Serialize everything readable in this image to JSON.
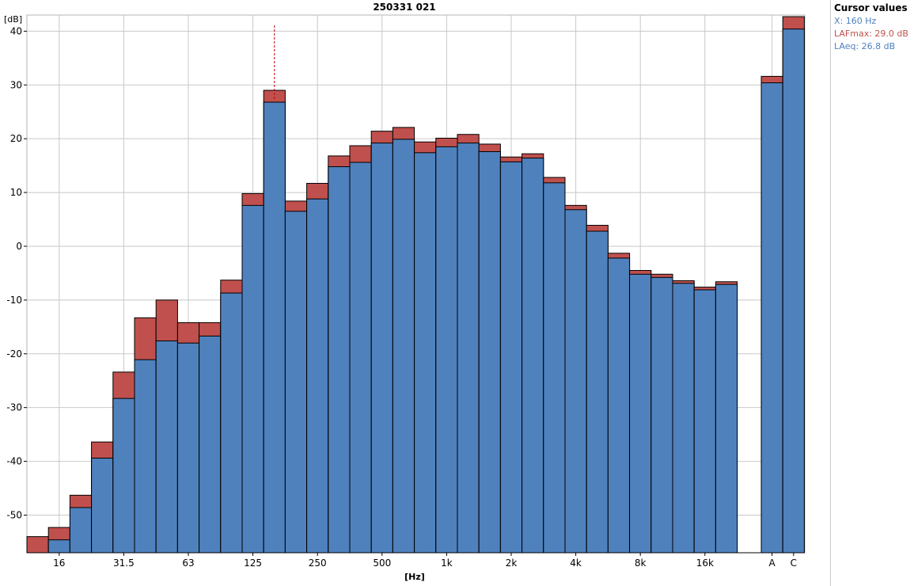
{
  "chart_data": {
    "type": "bar",
    "title": "250331 021",
    "ylabel": "[dB]",
    "xlabel": "[Hz]",
    "ylim": [
      -57,
      43
    ],
    "yticks": [
      40,
      30,
      20,
      10,
      0,
      -10,
      -20,
      -30,
      -40,
      -50
    ],
    "grid": true,
    "categories": [
      "12.5",
      "16",
      "20",
      "25",
      "31.5",
      "40",
      "50",
      "63",
      "80",
      "100",
      "125",
      "160",
      "200",
      "250",
      "315",
      "400",
      "500",
      "630",
      "800",
      "1k",
      "1.25k",
      "1.6k",
      "2k",
      "2.5k",
      "3.15k",
      "4k",
      "5k",
      "6.3k",
      "8k",
      "10k",
      "12.5k",
      "16k",
      "20k"
    ],
    "x_tick_labels": [
      "",
      "16",
      "",
      "",
      "31.5",
      "",
      "",
      "63",
      "",
      "",
      "125",
      "",
      "",
      "250",
      "",
      "",
      "500",
      "",
      "",
      "1k",
      "",
      "",
      "2k",
      "",
      "",
      "4k",
      "",
      "",
      "8k",
      "",
      "",
      "16k",
      ""
    ],
    "series": [
      {
        "name": "LAFmax",
        "color": "#c0504d",
        "values": [
          -54.0,
          -52.3,
          -46.3,
          -36.4,
          -23.4,
          -13.3,
          -10.0,
          -14.2,
          -14.2,
          -6.3,
          9.8,
          29.0,
          8.4,
          11.7,
          16.8,
          18.7,
          21.4,
          22.1,
          19.4,
          20.1,
          20.8,
          19.0,
          16.6,
          17.2,
          12.8,
          7.6,
          3.9,
          -1.3,
          -4.5,
          -5.2,
          -6.4,
          -7.6,
          -6.6
        ]
      },
      {
        "name": "LAeq",
        "color": "#4f81bd",
        "values": [
          -58.0,
          -54.6,
          -48.6,
          -39.4,
          -28.3,
          -21.1,
          -17.6,
          -18.0,
          -16.7,
          -8.7,
          7.6,
          26.8,
          6.5,
          8.8,
          14.8,
          15.6,
          19.2,
          19.9,
          17.4,
          18.5,
          19.2,
          17.6,
          15.7,
          16.4,
          11.8,
          6.8,
          2.8,
          -2.2,
          -5.2,
          -5.8,
          -6.9,
          -8.1,
          -7.1
        ]
      }
    ],
    "totals": {
      "categories": [
        "A",
        "C"
      ],
      "LAFmax": [
        31.6,
        42.7
      ],
      "LAeq": [
        30.4,
        40.4
      ]
    },
    "cursor": {
      "category": "160"
    }
  },
  "cursor_panel": {
    "title": "Cursor values",
    "x": "X: 160 Hz",
    "max": "LAFmax: 29.0 dB",
    "eq": "LAeq: 26.8 dB",
    "x_color": "#4f81bd",
    "max_color": "#c0504d",
    "eq_color": "#4f81bd"
  }
}
